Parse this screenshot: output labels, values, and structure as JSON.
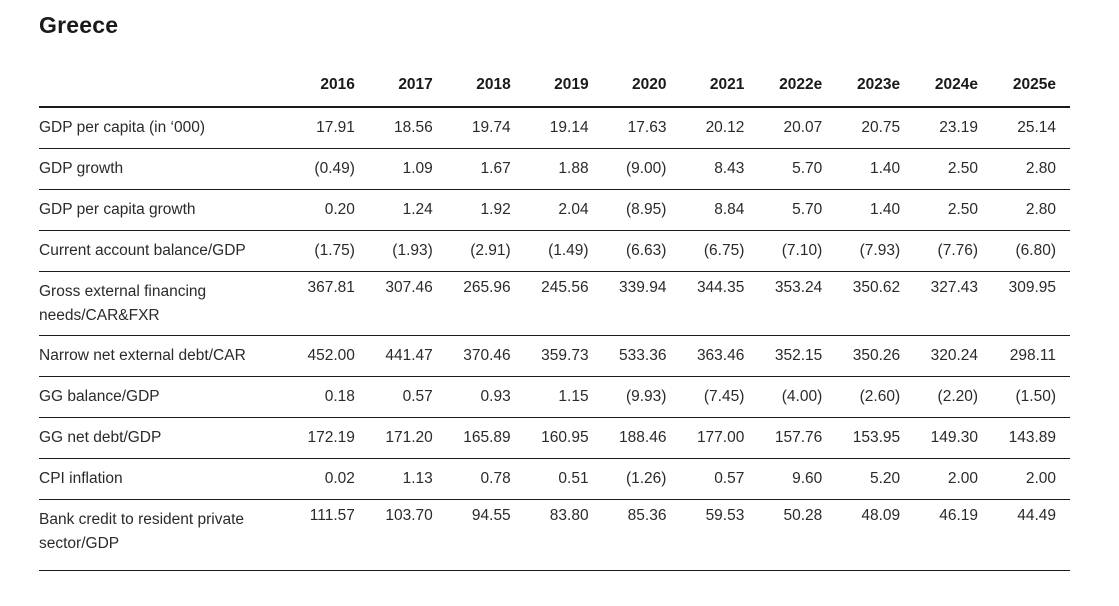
{
  "title": "Greece",
  "columns": [
    "2016",
    "2017",
    "2018",
    "2019",
    "2020",
    "2021",
    "2022e",
    "2023e",
    "2024e",
    "2025e"
  ],
  "rows": [
    {
      "label": "GDP per capita (in ‘000)",
      "values": [
        "17.91",
        "18.56",
        "19.74",
        "19.14",
        "17.63",
        "20.12",
        "20.07",
        "20.75",
        "23.19",
        "25.14"
      ]
    },
    {
      "label": "GDP growth",
      "values": [
        "(0.49)",
        "1.09",
        "1.67",
        "1.88",
        "(9.00)",
        "8.43",
        "5.70",
        "1.40",
        "2.50",
        "2.80"
      ]
    },
    {
      "label": "GDP per capita growth",
      "values": [
        "0.20",
        "1.24",
        "1.92",
        "2.04",
        "(8.95)",
        "8.84",
        "5.70",
        "1.40",
        "2.50",
        "2.80"
      ]
    },
    {
      "label": "Current account balance/GDP",
      "values": [
        "(1.75)",
        "(1.93)",
        "(2.91)",
        "(1.49)",
        "(6.63)",
        "(6.75)",
        "(7.10)",
        "(7.93)",
        "(7.76)",
        "(6.80)"
      ]
    },
    {
      "label": "Gross external financing needs/CAR&FXR",
      "values": [
        "367.81",
        "307.46",
        "265.96",
        "245.56",
        "339.94",
        "344.35",
        "353.24",
        "350.62",
        "327.43",
        "309.95"
      ]
    },
    {
      "label": "Narrow net external debt/CAR",
      "values": [
        "452.00",
        "441.47",
        "370.46",
        "359.73",
        "533.36",
        "363.46",
        "352.15",
        "350.26",
        "320.24",
        "298.11"
      ]
    },
    {
      "label": "GG balance/GDP",
      "values": [
        "0.18",
        "0.57",
        "0.93",
        "1.15",
        "(9.93)",
        "(7.45)",
        "(4.00)",
        "(2.60)",
        "(2.20)",
        "(1.50)"
      ]
    },
    {
      "label": "GG net debt/GDP",
      "values": [
        "172.19",
        "171.20",
        "165.89",
        "160.95",
        "188.46",
        "177.00",
        "157.76",
        "153.95",
        "149.30",
        "143.89"
      ]
    },
    {
      "label": "CPI inflation",
      "values": [
        "0.02",
        "1.13",
        "0.78",
        "0.51",
        "(1.26)",
        "0.57",
        "9.60",
        "5.20",
        "2.00",
        "2.00"
      ]
    },
    {
      "label": "Bank credit to resident private sector/GDP",
      "values": [
        "111.57",
        "103.70",
        "94.55",
        "83.80",
        "85.36",
        "59.53",
        "50.28",
        "48.09",
        "46.19",
        "44.49"
      ]
    }
  ]
}
